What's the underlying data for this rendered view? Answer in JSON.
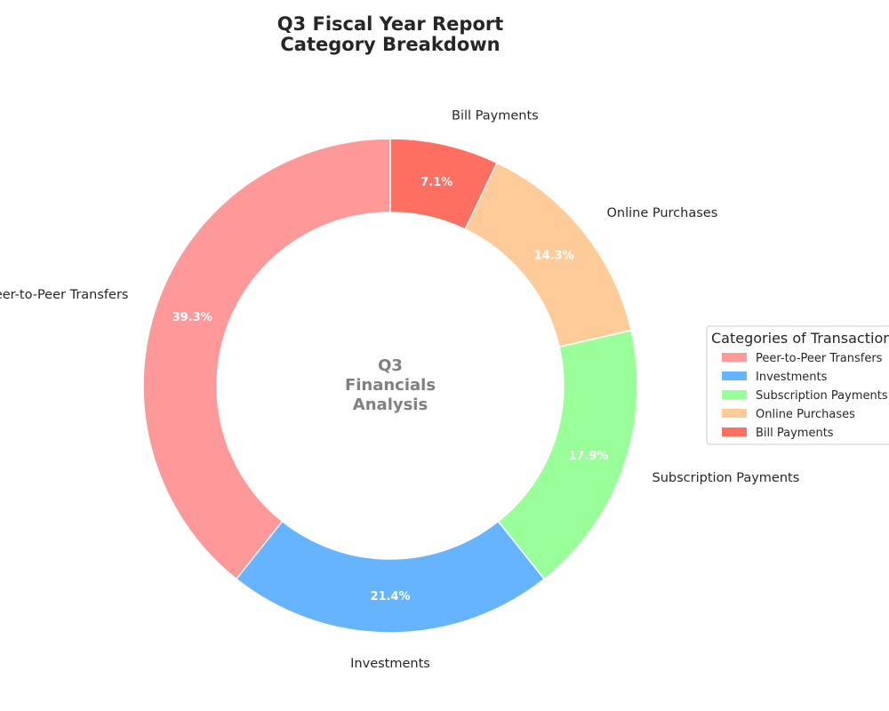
{
  "chart_data": {
    "type": "pie",
    "variant": "donut",
    "title": [
      "Q3 Fiscal Year Report",
      "Category Breakdown"
    ],
    "center_text": [
      "Q3",
      "Financials",
      "Analysis"
    ],
    "categories": [
      "Peer-to-Peer Transfers",
      "Investments",
      "Subscription Payments",
      "Online Purchases",
      "Bill Payments"
    ],
    "values": [
      39.3,
      21.4,
      17.9,
      14.3,
      7.1
    ],
    "value_labels": [
      "39.3%",
      "21.4%",
      "17.9%",
      "14.3%",
      "7.1%"
    ],
    "colors": [
      "#ff9999",
      "#66b3ff",
      "#99ff99",
      "#ffcc99",
      "#ff6f61"
    ],
    "start_angle_deg": 90,
    "direction": "counterclockwise",
    "legend": {
      "title": "Categories of Transactions",
      "placement": "right",
      "items": [
        "Peer-to-Peer Transfers",
        "Investments",
        "Subscription Payments",
        "Online Purchases",
        "Bill Payments"
      ]
    }
  }
}
